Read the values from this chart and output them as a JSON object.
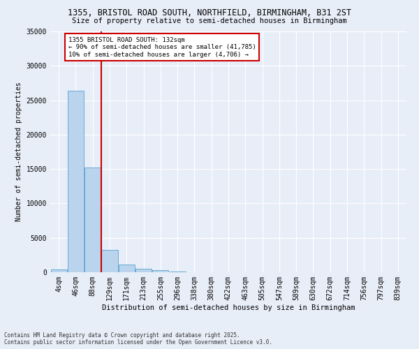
{
  "title1": "1355, BRISTOL ROAD SOUTH, NORTHFIELD, BIRMINGHAM, B31 2ST",
  "title2": "Size of property relative to semi-detached houses in Birmingham",
  "xlabel": "Distribution of semi-detached houses by size in Birmingham",
  "ylabel": "Number of semi-detached properties",
  "footnote": "Contains HM Land Registry data © Crown copyright and database right 2025.\nContains public sector information licensed under the Open Government Licence v3.0.",
  "bin_labels": [
    "4sqm",
    "46sqm",
    "88sqm",
    "129sqm",
    "171sqm",
    "213sqm",
    "255sqm",
    "296sqm",
    "338sqm",
    "380sqm",
    "422sqm",
    "463sqm",
    "505sqm",
    "547sqm",
    "589sqm",
    "630sqm",
    "672sqm",
    "714sqm",
    "756sqm",
    "797sqm",
    "839sqm"
  ],
  "bar_values": [
    400,
    26400,
    15200,
    3200,
    1100,
    480,
    290,
    100,
    40,
    15,
    8,
    4,
    2,
    1,
    0,
    0,
    0,
    0,
    0,
    0,
    0
  ],
  "vline_bin_index": 3,
  "property_label": "1355 BRISTOL ROAD SOUTH: 132sqm",
  "annotation_line1": "← 90% of semi-detached houses are smaller (41,785)",
  "annotation_line2": "10% of semi-detached houses are larger (4,706) →",
  "bar_color": "#bad4ed",
  "bar_edge_color": "#6aaad4",
  "vline_color": "#cc0000",
  "annotation_box_edgecolor": "#cc0000",
  "bg_color": "#e8eef8",
  "ylim": [
    0,
    35000
  ],
  "yticks": [
    0,
    5000,
    10000,
    15000,
    20000,
    25000,
    30000,
    35000
  ],
  "title1_fontsize": 8.5,
  "title2_fontsize": 7.5,
  "tick_fontsize": 7,
  "ylabel_fontsize": 7,
  "xlabel_fontsize": 7.5,
  "footnote_fontsize": 5.5
}
